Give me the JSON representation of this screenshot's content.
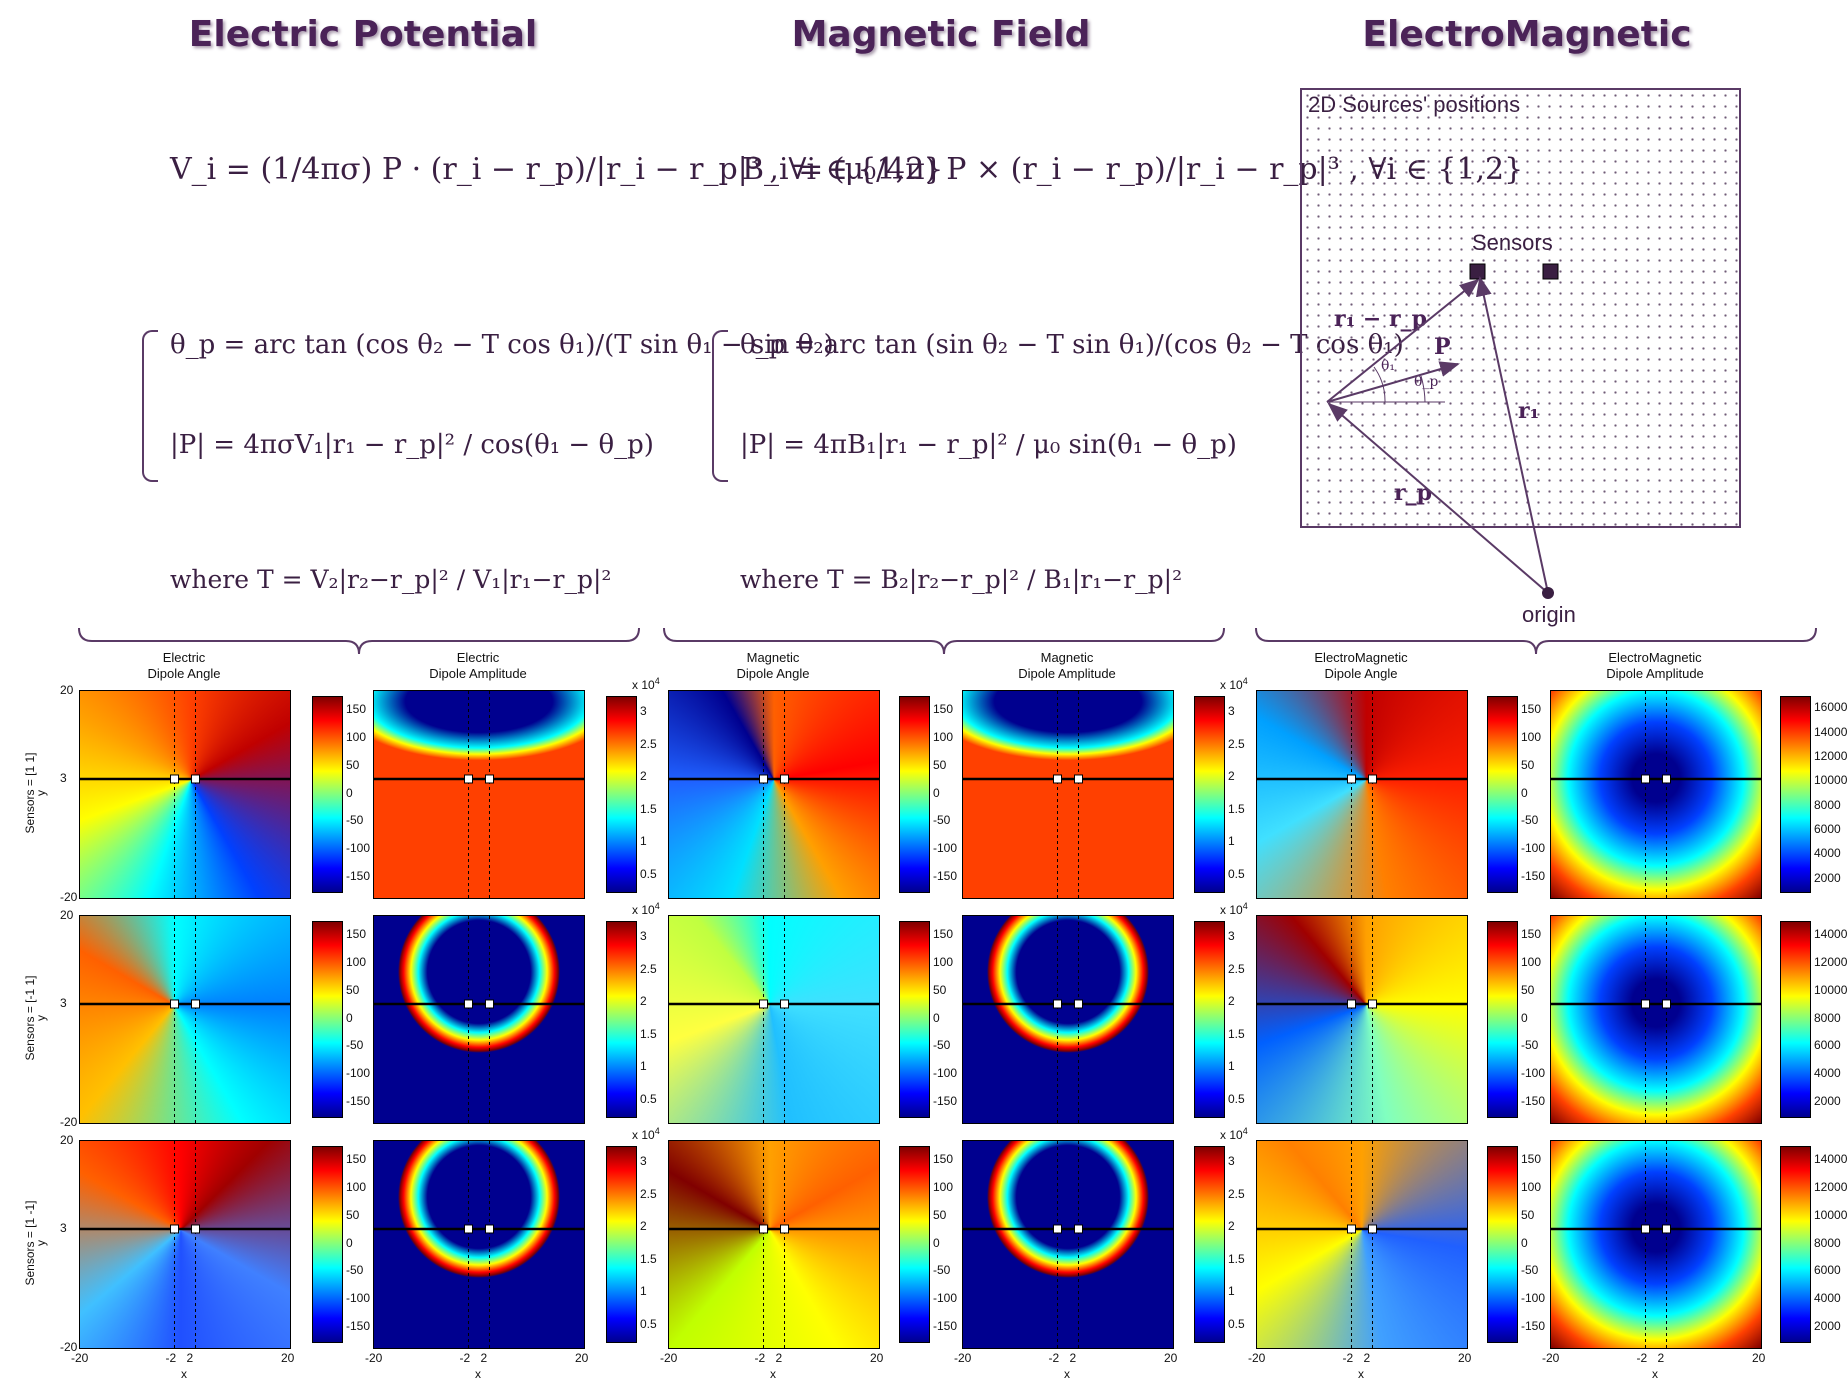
{
  "headings": {
    "electric": "Electric Potential",
    "magnetic": "Magnetic Field",
    "em": "ElectroMagnetic"
  },
  "formulas": {
    "electric_main": "V_i = (1/4πσ) P · (r_i − r_p)/|r_i − r_p|³ , ∀i ∈ {1,2}",
    "electric_theta": "θ_p = arc tan (cos θ₂ − T cos θ₁)/(T sin θ₁ − sin θ₂)",
    "electric_amp": "|P| = 4πσV₁|r₁ − r_p|² / cos(θ₁ − θ_p)",
    "electric_where": "where T = V₂|r₂−r_p|² / V₁|r₁−r_p|²",
    "magnetic_main": "B_i = (μ₀/4π) P × (r_i − r_p)/|r_i − r_p|³ , ∀i ∈ {1,2}",
    "magnetic_theta": "θ_p = arc tan (sin θ₂ − T sin θ₁)/(cos θ₂ − T cos θ₁)",
    "magnetic_amp": "|P| = 4πB₁|r₁ − r_p|² / μ₀ sin(θ₁ − θ_p)",
    "magnetic_where": "where T = B₂|r₂−r_p|² / B₁|r₁−r_p|²"
  },
  "schematic": {
    "title": "2D Sources' positions",
    "sensors": "Sensors",
    "origin": "origin",
    "r1_minus_rp": "r₁ − r_p",
    "P": "P",
    "theta1": "θ₁",
    "thetap": "θ_p",
    "r1": "r₁",
    "rp": "r_p"
  },
  "colors": {
    "accent": "#4b2358",
    "jet": [
      "#00008f",
      "#0000ff",
      "#00ffff",
      "#ffff00",
      "#ff0000",
      "#800000"
    ]
  },
  "chart_data": {
    "type": "heatmap",
    "columns": [
      {
        "title1": "Electric",
        "title2": "Dipole Angle"
      },
      {
        "title1": "Electric",
        "title2": "Dipole Amplitude"
      },
      {
        "title1": "Magnetic",
        "title2": "Dipole Angle"
      },
      {
        "title1": "Magnetic",
        "title2": "Dipole Amplitude"
      },
      {
        "title1": "ElectroMagnetic",
        "title2": "Dipole Angle"
      },
      {
        "title1": "ElectroMagnetic",
        "title2": "Dipole Amplitude"
      }
    ],
    "row_labels": [
      "Sensors = [1  1]",
      "Sensors = [-1  1]",
      "Sensors = [1 -1]"
    ],
    "ylabel": "y",
    "xlabel": "x",
    "x_ticks": [
      "-20",
      "-2",
      "2",
      "20"
    ],
    "y_ticks": [
      "20",
      "3",
      "-20"
    ],
    "xlim": [
      -20,
      20
    ],
    "ylim": [
      -20,
      20
    ],
    "angle_colorbar_ticks": [
      "150",
      "100",
      "50",
      "0",
      "-50",
      "-100",
      "-150"
    ],
    "electric_amp_colorbar_ticks": [
      "3",
      "2.5",
      "2",
      "1.5",
      "1",
      "0.5"
    ],
    "amp_exponent": "x 10",
    "amp_exponent_power": "4",
    "em_amp_colorbar_ticks": [
      [
        "16000",
        "14000",
        "12000",
        "10000",
        "8000",
        "6000",
        "4000",
        "2000"
      ],
      [
        "14000",
        "12000",
        "10000",
        "8000",
        "6000",
        "4000",
        "2000"
      ],
      [
        "14000",
        "12000",
        "10000",
        "8000",
        "6000",
        "4000",
        "2000"
      ]
    ]
  }
}
